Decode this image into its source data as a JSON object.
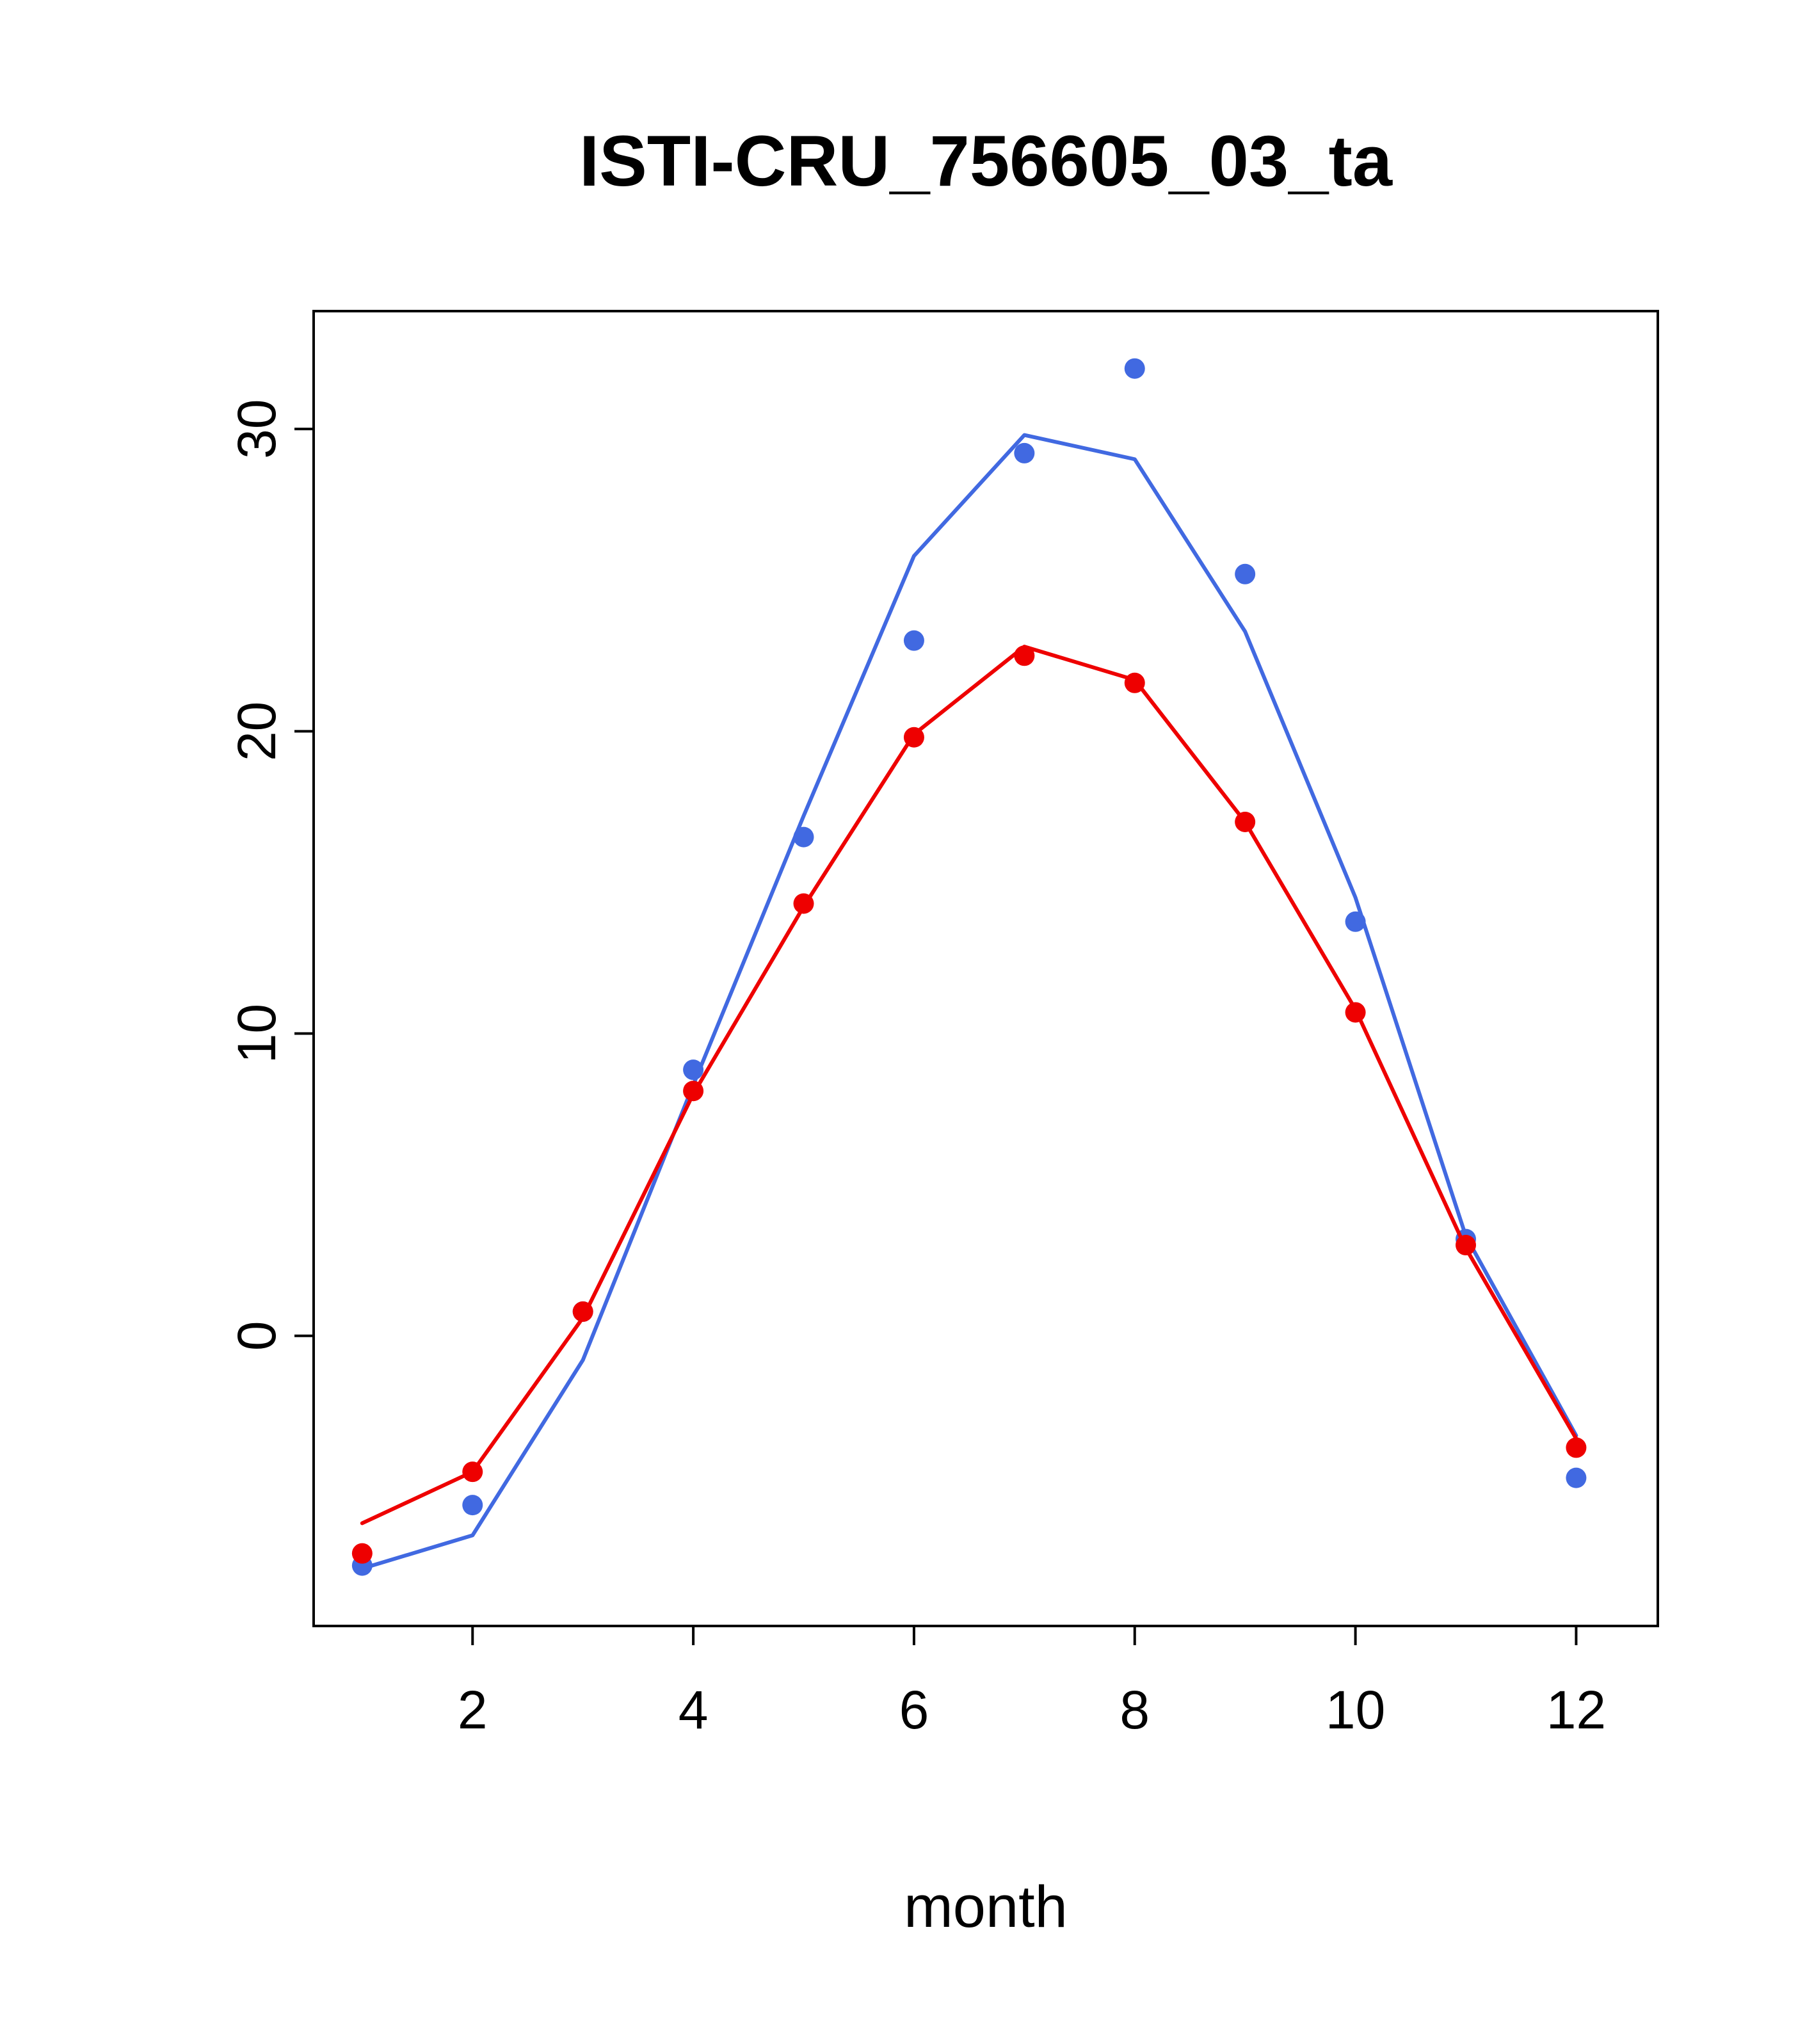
{
  "chart_data": {
    "type": "line",
    "title": "ISTI-CRU_756605_03_ta",
    "xlabel": "month",
    "ylabel": "",
    "x": [
      1,
      2,
      3,
      4,
      5,
      6,
      7,
      8,
      9,
      10,
      11,
      12
    ],
    "xticks": [
      2,
      4,
      6,
      8,
      10,
      12
    ],
    "yticks": [
      0,
      10,
      20,
      30
    ],
    "xlim": [
      0.56,
      12.74
    ],
    "ylim": [
      -9.6,
      33.9
    ],
    "grid": false,
    "legend": "none",
    "colors": {
      "blue": "#4169E1",
      "red": "#EE0000",
      "axis": "#000000",
      "background": "#FFFFFF"
    },
    "series": [
      {
        "name": "blue-line",
        "style": "line",
        "color": "#4169E1",
        "values": [
          -7.7,
          -6.6,
          -0.8,
          8.3,
          17.2,
          25.8,
          29.8,
          29.0,
          23.3,
          14.5,
          3.3,
          -3.3
        ]
      },
      {
        "name": "blue-points",
        "style": "points",
        "color": "#4169E1",
        "values": [
          -7.6,
          -5.6,
          0.8,
          8.8,
          16.5,
          23.0,
          29.2,
          32.0,
          25.2,
          13.7,
          3.2,
          -4.7
        ]
      },
      {
        "name": "red-line",
        "style": "line",
        "color": "#EE0000",
        "values": [
          -6.2,
          -4.5,
          0.6,
          8.0,
          14.2,
          19.9,
          22.8,
          21.7,
          17.0,
          10.8,
          2.9,
          -3.4
        ]
      },
      {
        "name": "red-points",
        "style": "points",
        "color": "#EE0000",
        "values": [
          -7.2,
          -4.5,
          0.8,
          8.1,
          14.3,
          19.8,
          22.5,
          21.6,
          17.0,
          10.7,
          3.0,
          -3.7
        ]
      }
    ]
  }
}
